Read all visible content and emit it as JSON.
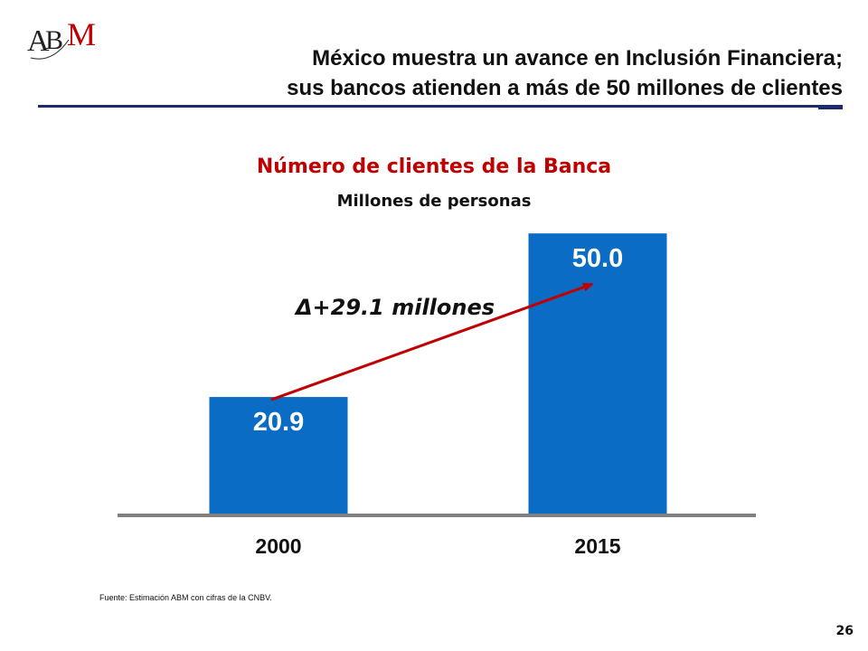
{
  "header": {
    "logo_text": "ABM",
    "title_line1": "México muestra un avance en Inclusión Financiera;",
    "title_line2": "sus bancos atienden a más de 50 millones de clientes"
  },
  "chart_data": {
    "type": "bar",
    "title": "Número de clientes de la Banca",
    "subtitle": "Millones de personas",
    "categories": [
      "2000",
      "2015"
    ],
    "values": [
      20.9,
      50.0
    ],
    "value_labels": [
      "20.9",
      "50.0"
    ],
    "ylim": [
      0,
      60
    ],
    "grid": false,
    "legend": "none",
    "annotation": "Δ+29.1 millones",
    "colors": {
      "bar": "#0a6cc4",
      "title": "#c00000",
      "arrow": "#c00000",
      "axis": "#808080"
    }
  },
  "footer": {
    "source": "Fuente: Estimación ABM con cifras de la CNBV.",
    "page_number": "26"
  }
}
